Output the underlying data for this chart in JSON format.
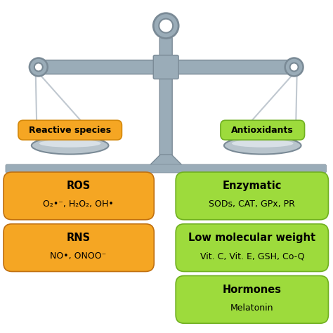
{
  "bg_color": "#ffffff",
  "beam_color_light": "#b8c4cc",
  "beam_color_mid": "#9aacb8",
  "beam_color_dark": "#7a8a96",
  "left_pan_label": "Reactive species",
  "right_pan_label": "Antioxidants",
  "left_pan_color": "#f5a623",
  "right_pan_color": "#9ddb3c",
  "left_boxes": [
    {
      "title": "ROS",
      "body": "O₂•⁻, H₂O₂, OH•"
    },
    {
      "title": "RNS",
      "body": "NO•, ONOO⁻"
    }
  ],
  "right_boxes": [
    {
      "title": "Enzymatic",
      "body": "SODs, CAT, GPx, PR"
    },
    {
      "title": "Low molecular weight",
      "body": "Vit. C, Vit. E, GSH, Co-Q"
    },
    {
      "title": "Hormones",
      "body": "Melatonin"
    }
  ],
  "left_box_color": "#f5a623",
  "right_box_color": "#9ddb3c",
  "string_color": "#c0c8d0",
  "pan_color": "#b8c4cc",
  "pan_highlight": "#d8e0e6"
}
